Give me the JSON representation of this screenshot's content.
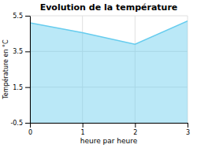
{
  "chart_data": {
    "type": "area",
    "title": "Evolution de la température",
    "x_label": "heure par heure",
    "y_label": "Température en °C",
    "x": [
      0,
      1,
      2,
      3
    ],
    "values": [
      5.1,
      4.55,
      3.9,
      5.2
    ],
    "color": "#66ccee",
    "xlim": [
      0,
      3
    ],
    "xticks": [
      0,
      1,
      2,
      3
    ],
    "ylim": [
      -0.5,
      5.5
    ],
    "yticks": [
      -0.5,
      1.5,
      3.5,
      5.5
    ],
    "grid": true
  }
}
